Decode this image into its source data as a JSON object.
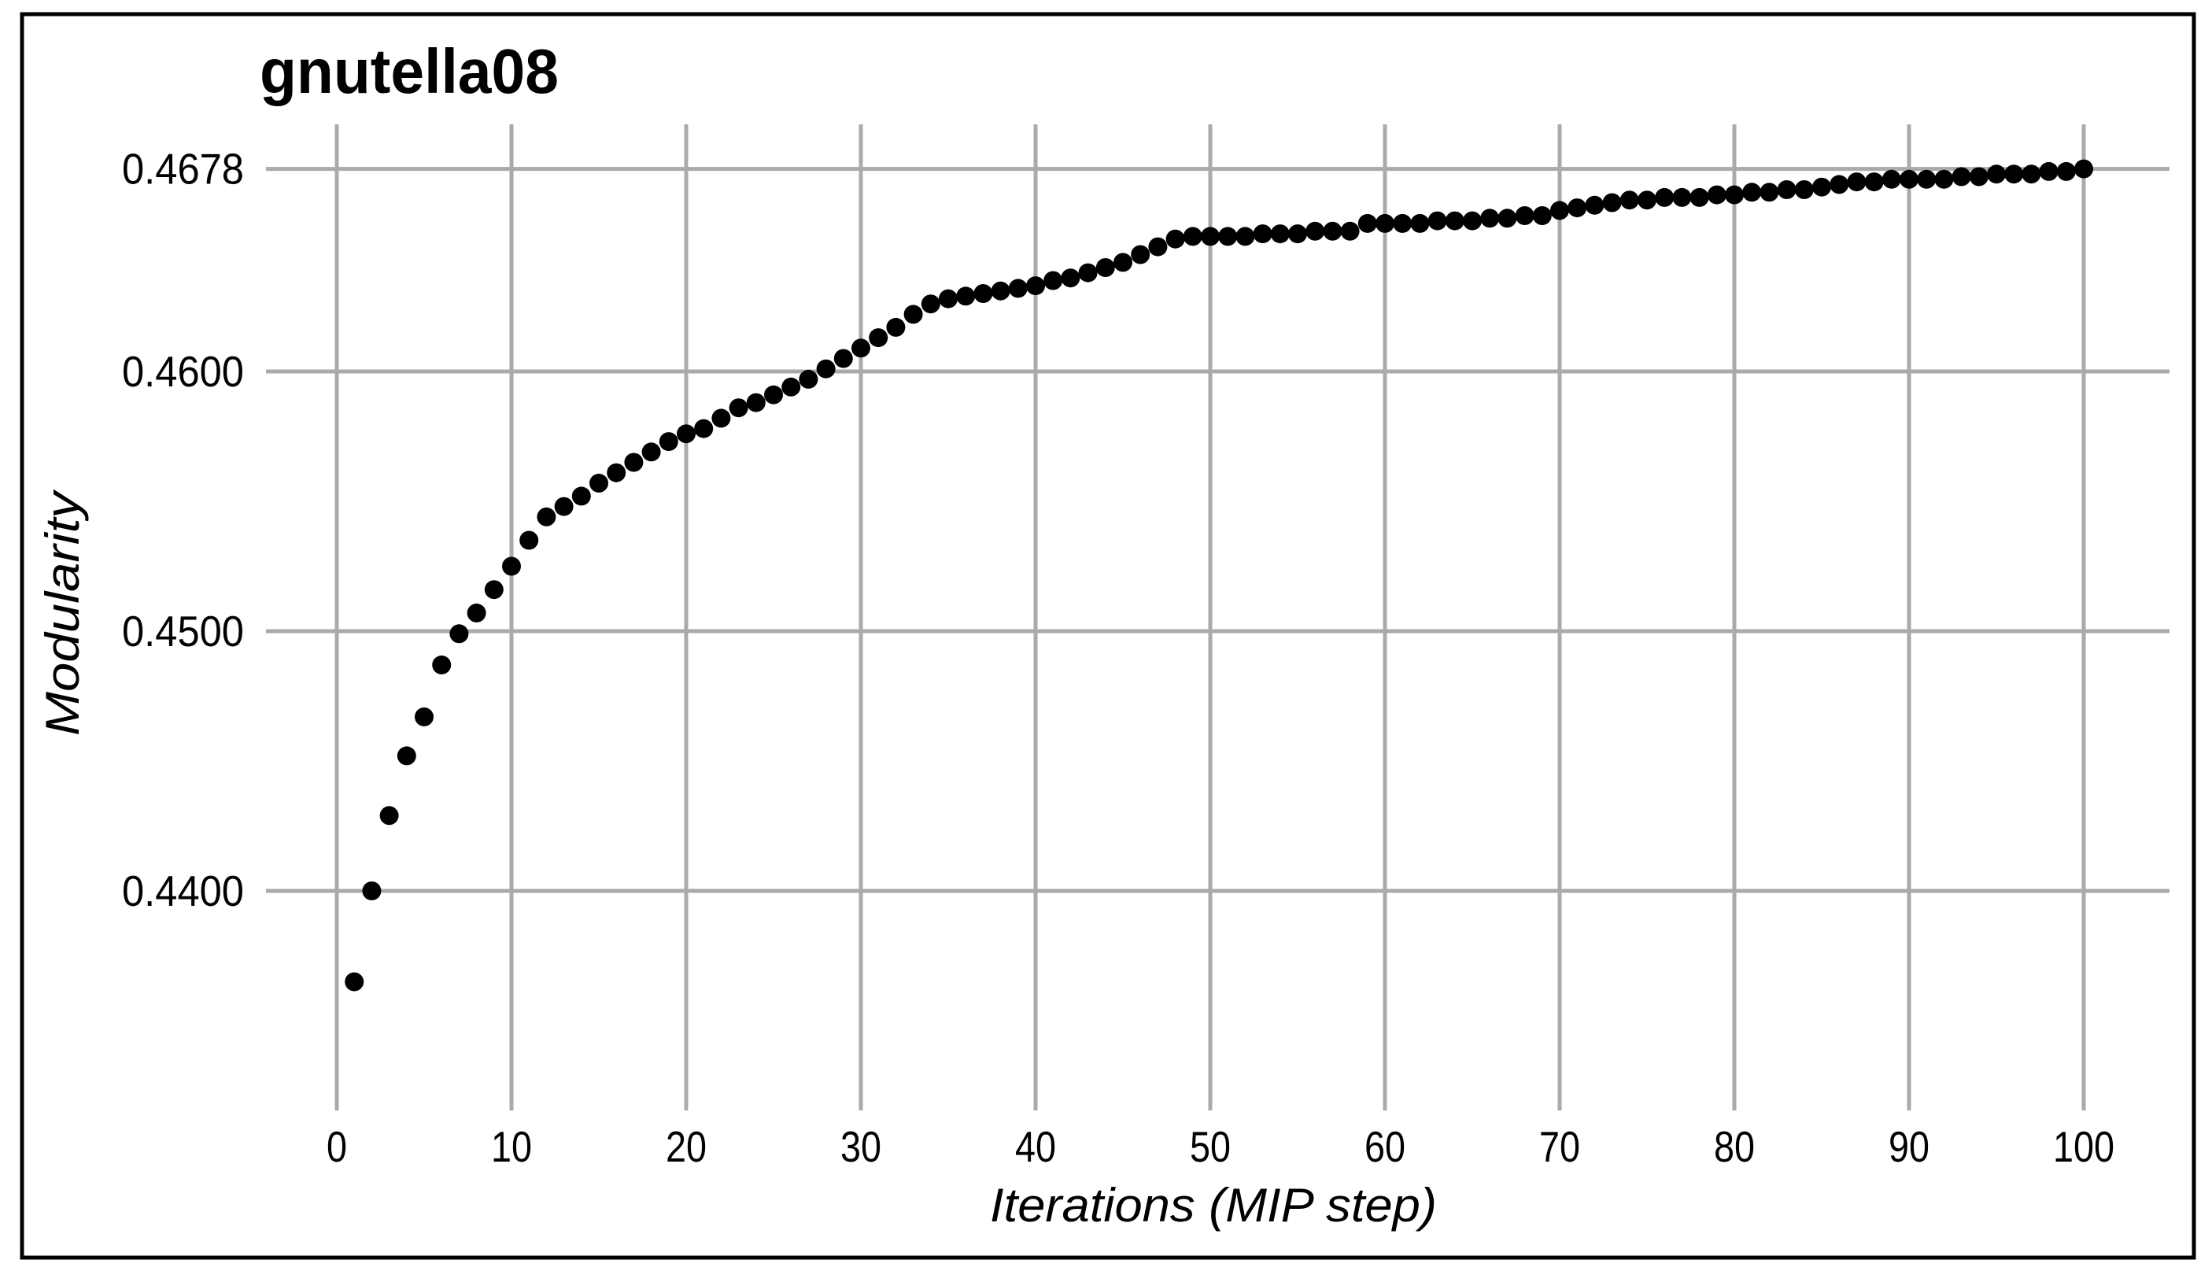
{
  "figure": {
    "title": "gnutella08",
    "xlabel": "Iterations (MIP step)",
    "ylabel": "Modularity"
  },
  "chart_data": {
    "type": "scatter",
    "title": "gnutella08",
    "xlabel": "Iterations (MIP step)",
    "ylabel": "Modularity",
    "grid": true,
    "legend_position": "none",
    "grid_color": "#aaaaaa",
    "border_color": "#000000",
    "marker": {
      "shape": "circle",
      "color": "#000000",
      "radius_px": 12
    },
    "xlim": [
      -4,
      106.5
    ],
    "ylim": [
      0.4315,
      0.4695
    ],
    "x_ticks": [
      0,
      10,
      20,
      30,
      40,
      50,
      60,
      70,
      80,
      90,
      100
    ],
    "y_ticks": [
      {
        "label": "0.4678",
        "value": 0.4678
      },
      {
        "label": "0.4600",
        "value": 0.46
      },
      {
        "label": "0.4500",
        "value": 0.45
      },
      {
        "label": "0.4400",
        "value": 0.44
      }
    ],
    "series": [
      {
        "name": "modularity",
        "x": [
          1,
          2,
          3,
          4,
          5,
          6,
          7,
          8,
          9,
          10,
          11,
          12,
          13,
          14,
          15,
          16,
          17,
          18,
          19,
          20,
          21,
          22,
          23,
          24,
          25,
          26,
          27,
          28,
          29,
          30,
          31,
          32,
          33,
          34,
          35,
          36,
          37,
          38,
          39,
          40,
          41,
          42,
          43,
          44,
          45,
          46,
          47,
          48,
          49,
          50,
          51,
          52,
          53,
          54,
          55,
          56,
          57,
          58,
          59,
          60,
          61,
          62,
          63,
          64,
          65,
          66,
          67,
          68,
          69,
          70,
          71,
          72,
          73,
          74,
          75,
          76,
          77,
          78,
          79,
          80,
          81,
          82,
          83,
          84,
          85,
          86,
          87,
          88,
          89,
          90,
          91,
          92,
          93,
          94,
          95,
          96,
          97,
          98,
          99,
          100
        ],
        "y": [
          0.4365,
          0.44,
          0.4429,
          0.4452,
          0.4467,
          0.4487,
          0.4499,
          0.4507,
          0.4516,
          0.4525,
          0.4535,
          0.4544,
          0.4548,
          0.4552,
          0.4557,
          0.4561,
          0.4565,
          0.4569,
          0.4573,
          0.4576,
          0.4578,
          0.4582,
          0.4586,
          0.4588,
          0.4591,
          0.4594,
          0.4597,
          0.4601,
          0.4605,
          0.4609,
          0.4613,
          0.4617,
          0.4622,
          0.4626,
          0.4628,
          0.4629,
          0.463,
          0.4631,
          0.4632,
          0.4633,
          0.4635,
          0.4636,
          0.4638,
          0.464,
          0.4642,
          0.4645,
          0.4648,
          0.4651,
          0.4652,
          0.4652,
          0.4652,
          0.4652,
          0.4653,
          0.4653,
          0.4653,
          0.4654,
          0.4654,
          0.4654,
          0.4657,
          0.4657,
          0.4657,
          0.4657,
          0.4658,
          0.4658,
          0.4658,
          0.4659,
          0.4659,
          0.466,
          0.466,
          0.4662,
          0.4663,
          0.4664,
          0.4665,
          0.4666,
          0.4666,
          0.4667,
          0.4667,
          0.4667,
          0.4668,
          0.4668,
          0.4669,
          0.4669,
          0.467,
          0.467,
          0.4671,
          0.4672,
          0.4673,
          0.4673,
          0.4674,
          0.4674,
          0.4674,
          0.4674,
          0.4675,
          0.4675,
          0.4676,
          0.4676,
          0.4676,
          0.4677,
          0.4677,
          0.4678
        ]
      }
    ]
  }
}
